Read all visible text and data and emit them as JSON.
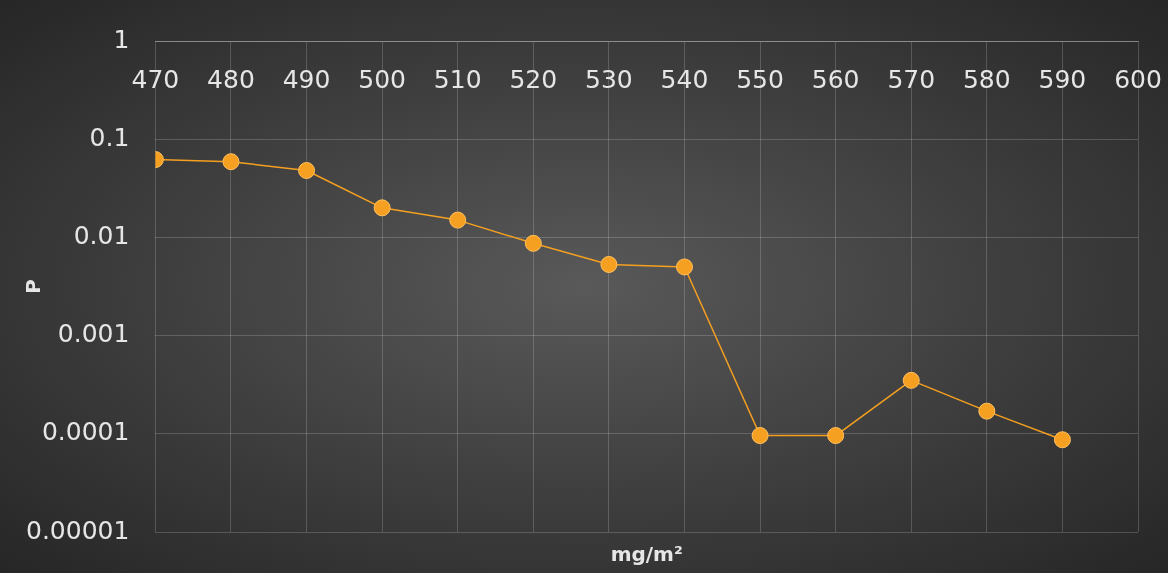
{
  "chart_data": {
    "type": "line",
    "xlabel": "mg/m²",
    "ylabel": "P",
    "x": [
      470,
      480,
      490,
      500,
      510,
      520,
      530,
      540,
      550,
      560,
      570,
      580,
      590
    ],
    "series": [
      {
        "color": "#f5a020",
        "values": [
          0.062,
          0.059,
          0.048,
          0.02,
          0.015,
          0.0087,
          0.0053,
          0.005,
          9.6e-05,
          9.6e-05,
          0.00035,
          0.00017,
          8.7e-05
        ]
      }
    ],
    "xlim": [
      470,
      600
    ],
    "xticks": [
      470,
      480,
      490,
      500,
      510,
      520,
      530,
      540,
      550,
      560,
      570,
      580,
      590,
      600
    ],
    "ylim": [
      1e-05,
      1
    ],
    "yticks": [
      {
        "value": 1e-05,
        "label": "0.00001"
      },
      0.0001,
      0.001,
      0.01,
      0.1,
      1
    ],
    "log": "y",
    "grid": true,
    "legend": false,
    "marker": "circle",
    "line_style": "solid"
  }
}
